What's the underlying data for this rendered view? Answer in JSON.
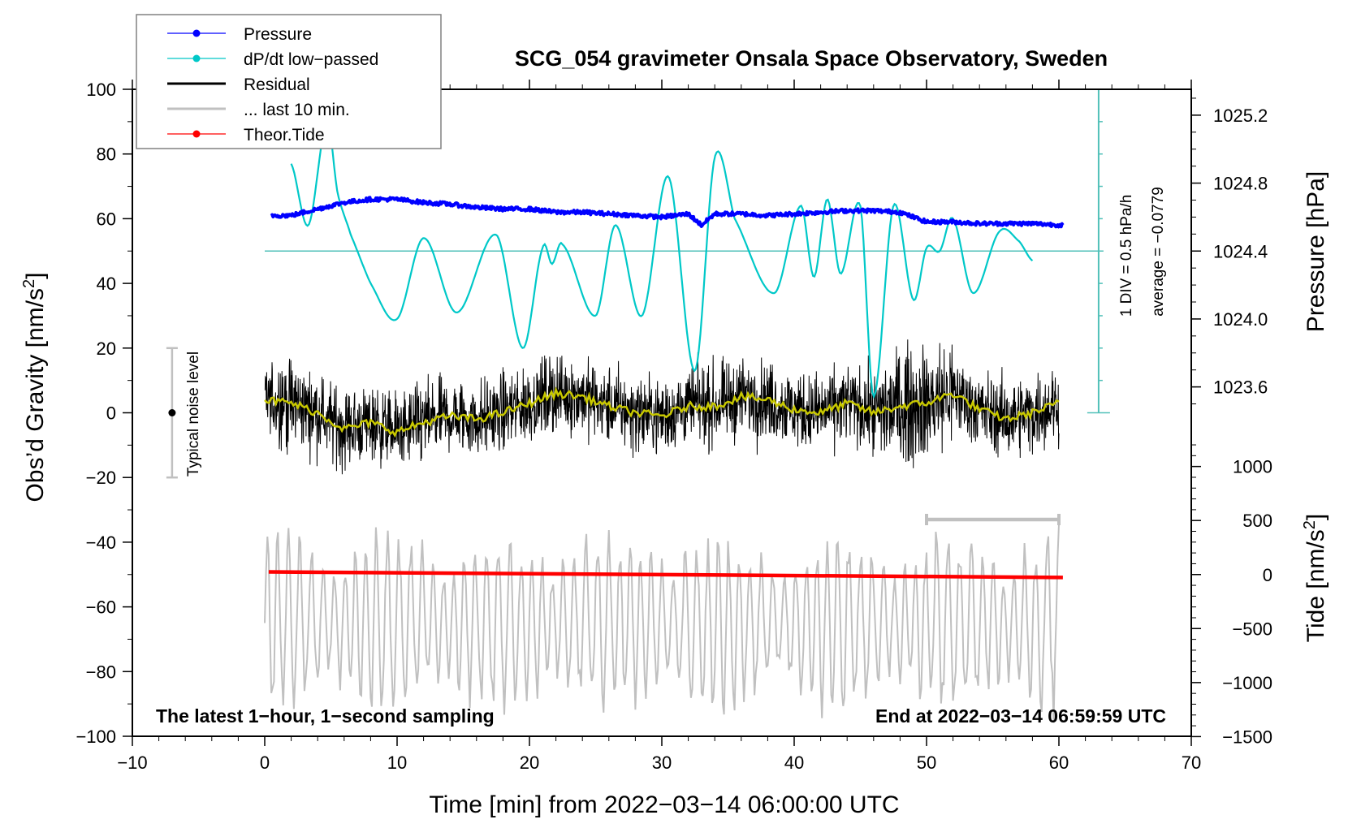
{
  "chart_data": {
    "type": "line",
    "title": "SCG_054 gravimeter Onsala Space Observatory, Sweden",
    "xlabel": "Time [min] from 2022−03−14 06:00:00 UTC",
    "ylabel_left": "Obs’d Gravity [nm/s²]",
    "ylabel_left_main": "Obs’d Gravity [nm/s",
    "ylabel_left_sup": "2",
    "ylabel_left_end": "]",
    "ylabel_right_pressure": "Pressure [hPa]",
    "ylabel_right_tide_main": "Tide [nm/s",
    "ylabel_right_tide_sup": "2",
    "ylabel_right_tide_end": "]",
    "xlim": [
      -10,
      70
    ],
    "ylim": [
      -100,
      100
    ],
    "x_ticks": [
      -10,
      0,
      10,
      20,
      30,
      40,
      50,
      60,
      70
    ],
    "x_tick_labels": [
      "−10",
      "0",
      "10",
      "20",
      "30",
      "40",
      "50",
      "60",
      "70"
    ],
    "y_ticks": [
      -100,
      -80,
      -60,
      -40,
      -20,
      0,
      20,
      40,
      60,
      80,
      100
    ],
    "y_tick_labels": [
      "−100",
      "−80",
      "−60",
      "−40",
      "−20",
      "0",
      "20",
      "40",
      "60",
      "80",
      "100"
    ],
    "pressure_axis": {
      "ticks": [
        1023.6,
        1024.0,
        1024.4,
        1024.8,
        1025.2
      ],
      "tick_labels": [
        "1023.6",
        "1024.0",
        "1024.4",
        "1024.8",
        "1025.2"
      ],
      "gravity_equiv_at_1024_4": 50,
      "gravity_units_per_hPa": 52.5
    },
    "tide_axis": {
      "ticks": [
        -1500,
        -1000,
        -500,
        0,
        500,
        1000
      ],
      "tick_labels": [
        "−1500",
        "−1000",
        "−500",
        "0",
        "500",
        "1000"
      ],
      "gravity_equiv_at_0": -50,
      "gravity_units_per_500": 16.7
    },
    "legend": {
      "placement": "top-left",
      "entries": [
        {
          "label": "Pressure",
          "color": "#0000ff",
          "marker": "dot"
        },
        {
          "label": "dP/dt low−passed",
          "color": "#00c8c8",
          "marker": "dot"
        },
        {
          "label": "Residual",
          "color": "#000000",
          "marker": "line"
        },
        {
          "label": "... last 10 min.",
          "color": "#c0c0c0",
          "marker": "line"
        },
        {
          "label": "Theor.Tide",
          "color": "#ff0000",
          "marker": "dot"
        }
      ]
    },
    "series": [
      {
        "name": "Pressure",
        "color": "#0000ff",
        "unit": "gravity-plot units",
        "x": [
          0.5,
          2,
          4,
          6,
          8,
          10,
          12,
          14,
          16,
          18,
          20,
          22,
          24,
          26,
          28,
          30,
          32,
          33,
          34,
          36,
          38,
          40,
          42,
          44,
          46,
          48,
          50,
          52,
          54,
          56,
          58,
          60.3
        ],
        "y": [
          61,
          61,
          63,
          65,
          66,
          66,
          65,
          64.5,
          63.5,
          63,
          63,
          62,
          62,
          61.5,
          61,
          60.5,
          61.5,
          58,
          61.5,
          61.5,
          61,
          61.5,
          62,
          62.5,
          62.5,
          62,
          59,
          59,
          58.5,
          58.5,
          58.5,
          58
        ]
      },
      {
        "name": "dP/dt low-passed",
        "color": "#00c8c8",
        "unit": "gravity-plot units",
        "x": [
          2,
          3.3,
          4.7,
          5.5,
          6.5,
          8,
          10,
          12,
          14.5,
          17.5,
          19.5,
          21,
          21.7,
          22.5,
          25,
          26.5,
          28.5,
          30.5,
          32.5,
          34,
          35.5,
          38.5,
          40.5,
          41.5,
          42.5,
          43.5,
          45,
          46,
          47.5,
          49,
          50,
          51,
          52,
          53.5,
          55.5,
          57,
          58
        ],
        "y": [
          77,
          58,
          90,
          68,
          55,
          40,
          29,
          54,
          31,
          55,
          20,
          51,
          46,
          52,
          30,
          58,
          30,
          73,
          13,
          79,
          60,
          37,
          64,
          42,
          66,
          43,
          64,
          5,
          64,
          35,
          51,
          50,
          60,
          37,
          56,
          53,
          47
        ]
      },
      {
        "name": "Residual (smoothed, yellow)",
        "color": "#c8c800",
        "x": [
          0,
          2,
          4,
          6,
          8,
          10,
          12,
          14,
          16,
          18,
          20,
          22,
          24,
          26,
          28,
          30,
          32,
          34,
          36,
          38,
          40,
          42,
          44,
          46,
          48,
          50,
          52,
          54,
          56,
          58,
          60
        ],
        "y": [
          4,
          3,
          0,
          -5,
          -3,
          -6,
          -3,
          -1,
          -2,
          0,
          3,
          6,
          5,
          2,
          0,
          -1,
          2,
          2,
          5,
          4,
          1,
          0,
          3,
          0,
          2,
          3,
          6,
          1,
          -2,
          0,
          3
        ]
      },
      {
        "name": "Residual",
        "color": "#000000",
        "description": "1-second noise, amplitude ~±20 nm/s², bursts near 47–50 min",
        "x_range": [
          0,
          60
        ],
        "envelope": 20
      },
      {
        "name": "... last 10 min.",
        "color": "#c0c0c0",
        "description": "residual of last 10 minutes, stretched over full width, offset to tide baseline",
        "x_range": [
          0,
          60
        ],
        "center": -65,
        "envelope": 25
      },
      {
        "name": "Theor.Tide",
        "color": "#ff0000",
        "x": [
          0.3,
          60.3
        ],
        "y": [
          -49.2,
          -50.9
        ]
      }
    ],
    "pressure_reference_line": {
      "y": 50,
      "x_range": [
        0,
        63
      ]
    },
    "dpdt_scale_bar": {
      "x": 63,
      "y_range": [
        0,
        100
      ],
      "label": "1 DIV = 0.5 hPa/h",
      "average_label": "average = −0.0779"
    },
    "noise_level_marker": {
      "x": -7,
      "y": 0,
      "y_range": [
        -20,
        20
      ],
      "label": "Typical noise level"
    },
    "last10_bracket": {
      "x_range": [
        50,
        60
      ],
      "y": -33
    },
    "annotations": {
      "bottom_left": "The latest 1−hour, 1−second sampling",
      "bottom_right": "End at 2022−03−14 06:59:59 UTC"
    }
  }
}
